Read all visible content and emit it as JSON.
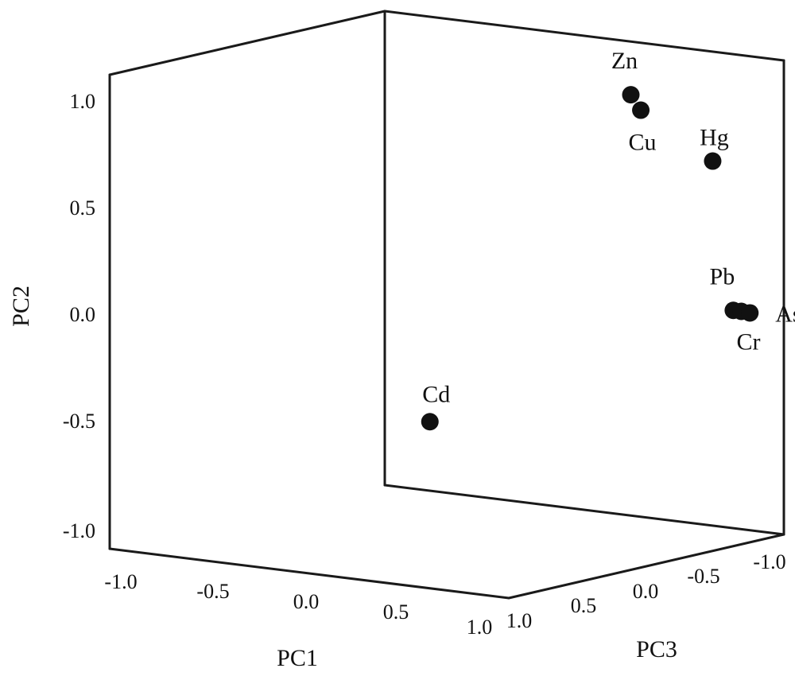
{
  "chart_data": {
    "type": "scatter",
    "title": "",
    "xlabel": "PC1",
    "ylabel": "PC2",
    "zlabel": "PC3",
    "xlim": [
      -1.0,
      1.0
    ],
    "ylim": [
      -1.0,
      1.0
    ],
    "zlim": [
      -1.0,
      1.0
    ],
    "x_ticks": [
      "-1.0",
      "-0.5",
      "0.0",
      "0.5",
      "1.0"
    ],
    "y_ticks": [
      "1.0",
      "0.5",
      "0.0",
      "-0.5",
      "-1.0"
    ],
    "z_ticks": [
      "1.0",
      "0.5",
      "0.0",
      "-0.5",
      "-1.0"
    ],
    "grid": false,
    "marker_color": "#111111",
    "points": [
      {
        "label": "Zn",
        "x": 0.75,
        "y": 0.93,
        "z": -0.25
      },
      {
        "label": "Cu",
        "x": 0.8,
        "y": 0.87,
        "z": -0.25
      },
      {
        "label": "Hg",
        "x": 0.85,
        "y": 0.6,
        "z": -0.7
      },
      {
        "label": "Pb",
        "x": 0.85,
        "y": -0.05,
        "z": -0.85
      },
      {
        "label": "Cr",
        "x": 0.89,
        "y": -0.05,
        "z": -0.85
      },
      {
        "label": "As",
        "x": 0.94,
        "y": -0.05,
        "z": -0.84
      },
      {
        "label": "Cd",
        "x": 0.26,
        "y": -0.4,
        "z": 0.5
      }
    ]
  }
}
